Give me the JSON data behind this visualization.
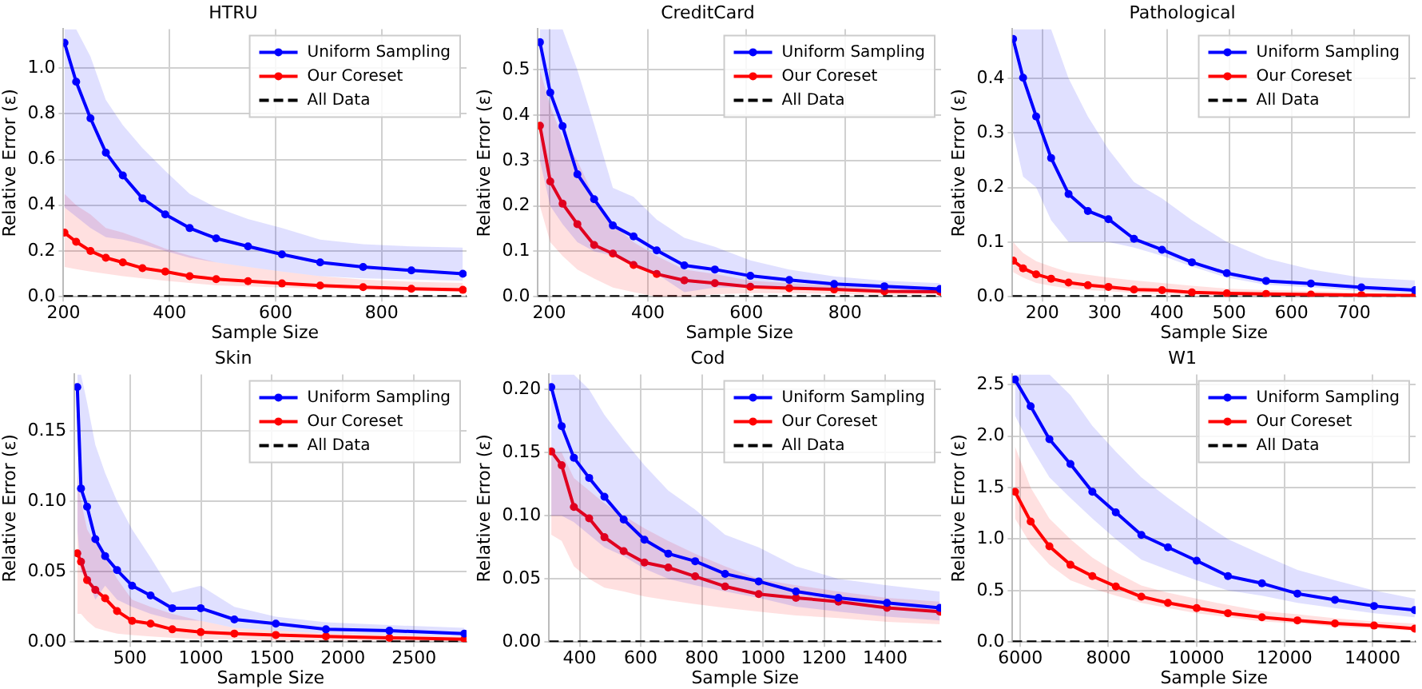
{
  "chart_data": [
    {
      "type": "line",
      "title": "HTRU",
      "xlabel": "Sample Size",
      "ylabel": "Relative Error (ε)",
      "grid": true,
      "legend": "top right",
      "marker": "circle",
      "xlim": [
        200,
        960
      ],
      "xticks": [
        200,
        400,
        600,
        800
      ],
      "ylim": [
        0,
        1.17
      ],
      "yticks": [
        {
          "value": 0,
          "label": "0.0"
        },
        {
          "value": 0.2,
          "label": "0.2"
        },
        {
          "value": 0.4,
          "label": "0.4"
        },
        {
          "value": 0.6,
          "label": "0.6"
        },
        {
          "value": 0.8,
          "label": "0.8"
        },
        {
          "value": 1,
          "label": "1.0"
        }
      ],
      "series": [
        {
          "name": "Uniform Sampling",
          "color": "#0000ff",
          "x": [
            202,
            224,
            251,
            280,
            312,
            349,
            392,
            438,
            488,
            548,
            612,
            684,
            765,
            856,
            953
          ],
          "values": [
            1.11,
            0.94,
            0.78,
            0.63,
            0.53,
            0.43,
            0.36,
            0.3,
            0.255,
            0.22,
            0.185,
            0.15,
            0.13,
            0.115,
            0.1
          ],
          "lower": [
            0.39,
            0.35,
            0.3,
            0.26,
            0.25,
            0.23,
            0.2,
            0.17,
            0.15,
            0.13,
            0.11,
            0.09,
            0.08,
            0.075,
            0.07
          ],
          "upper": [
            1.17,
            1.17,
            1.05,
            0.86,
            0.75,
            0.65,
            0.55,
            0.45,
            0.39,
            0.34,
            0.3,
            0.25,
            0.23,
            0.22,
            0.215
          ]
        },
        {
          "name": "Our Coreset",
          "color": "#ff0000",
          "x": [
            202,
            224,
            251,
            280,
            312,
            349,
            392,
            438,
            488,
            548,
            612,
            684,
            765,
            856,
            953
          ],
          "values": [
            0.28,
            0.24,
            0.2,
            0.17,
            0.15,
            0.125,
            0.11,
            0.09,
            0.077,
            0.068,
            0.058,
            0.049,
            0.042,
            0.035,
            0.03
          ],
          "lower": [
            0.13,
            0.12,
            0.11,
            0.1,
            0.09,
            0.08,
            0.07,
            0.06,
            0.05,
            0.045,
            0.04,
            0.035,
            0.03,
            0.025,
            0.02
          ],
          "upper": [
            0.45,
            0.4,
            0.36,
            0.3,
            0.28,
            0.25,
            0.21,
            0.18,
            0.15,
            0.13,
            0.11,
            0.09,
            0.075,
            0.065,
            0.06
          ]
        },
        {
          "name": "All Data",
          "color": "#000000",
          "marker": "none",
          "line_style": "dashed",
          "x": [
            200,
            960
          ],
          "values": [
            0,
            0
          ]
        }
      ]
    },
    {
      "type": "line",
      "title": "CreditCard",
      "xlabel": "Sample Size",
      "ylabel": "Relative Error (ε)",
      "grid": true,
      "legend": "top right",
      "marker": "circle",
      "xlim": [
        177,
        995
      ],
      "xticks": [
        200,
        400,
        600,
        800
      ],
      "ylim": [
        0,
        0.59
      ],
      "yticks": [
        {
          "value": 0,
          "label": "0.0"
        },
        {
          "value": 0.1,
          "label": "0.1"
        },
        {
          "value": 0.2,
          "label": "0.2"
        },
        {
          "value": 0.3,
          "label": "0.3"
        },
        {
          "value": 0.4,
          "label": "0.4"
        },
        {
          "value": 0.5,
          "label": "0.5"
        }
      ],
      "series": [
        {
          "name": "Uniform Sampling",
          "color": "#0000ff",
          "x": [
            181,
            202,
            227,
            257,
            291,
            329,
            371,
            418,
            474,
            536,
            608,
            687,
            778,
            880,
            993
          ],
          "values": [
            0.561,
            0.45,
            0.376,
            0.27,
            0.215,
            0.157,
            0.133,
            0.102,
            0.069,
            0.06,
            0.046,
            0.037,
            0.028,
            0.023,
            0.017
          ],
          "lower": [
            0.3,
            0.2,
            0.16,
            0.12,
            0.1,
            0.09,
            0.07,
            0.05,
            0.01,
            0.02,
            0.02,
            0.02,
            0.015,
            0.01,
            0.008
          ],
          "upper": [
            0.59,
            0.59,
            0.59,
            0.5,
            0.38,
            0.24,
            0.22,
            0.17,
            0.13,
            0.11,
            0.08,
            0.06,
            0.045,
            0.035,
            0.03
          ]
        },
        {
          "name": "Our Coreset",
          "color": "#ff0000",
          "x": [
            181,
            202,
            227,
            257,
            291,
            329,
            371,
            418,
            474,
            536,
            608,
            687,
            778,
            880,
            993
          ],
          "values": [
            0.377,
            0.254,
            0.205,
            0.16,
            0.114,
            0.095,
            0.07,
            0.05,
            0.036,
            0.03,
            0.022,
            0.019,
            0.016,
            0.012,
            0.011
          ],
          "lower": [
            0.2,
            0.12,
            0.09,
            0.06,
            0.04,
            0.02,
            0.01,
            0,
            0,
            0.005,
            0.008,
            0.008,
            0.006,
            0.004,
            0.004
          ],
          "upper": [
            0.5,
            0.42,
            0.35,
            0.3,
            0.22,
            0.16,
            0.12,
            0.09,
            0.06,
            0.05,
            0.035,
            0.03,
            0.025,
            0.02,
            0.018
          ]
        },
        {
          "name": "All Data",
          "color": "#000000",
          "marker": "none",
          "line_style": "dashed",
          "x": [
            177,
            995
          ],
          "values": [
            0,
            0
          ]
        }
      ]
    },
    {
      "type": "line",
      "title": "Pathological",
      "xlabel": "Sample Size",
      "ylabel": "Relative Error (ε)",
      "grid": true,
      "legend": "top right",
      "marker": "circle",
      "xlim": [
        152,
        799
      ],
      "xticks": [
        200,
        300,
        400,
        500,
        600,
        700
      ],
      "ylim": [
        0,
        0.49
      ],
      "yticks": [
        {
          "value": 0,
          "label": "0.0"
        },
        {
          "value": 0.1,
          "label": "0.1"
        },
        {
          "value": 0.2,
          "label": "0.2"
        },
        {
          "value": 0.3,
          "label": "0.3"
        },
        {
          "value": 0.4,
          "label": "0.4"
        }
      ],
      "series": [
        {
          "name": "Uniform Sampling",
          "color": "#0000ff",
          "x": [
            153,
            169,
            190,
            214,
            242,
            273,
            306,
            347,
            392,
            440,
            496,
            559,
            631,
            712,
            798
          ],
          "values": [
            0.472,
            0.401,
            0.33,
            0.254,
            0.188,
            0.157,
            0.142,
            0.106,
            0.086,
            0.063,
            0.043,
            0.029,
            0.024,
            0.017,
            0.012
          ],
          "lower": [
            0.3,
            0.22,
            0.2,
            0.14,
            0.1,
            0.1,
            0.1,
            0.09,
            0.075,
            0.055,
            0.035,
            0.022,
            0.017,
            0.01,
            0.006
          ],
          "upper": [
            0.49,
            0.49,
            0.49,
            0.49,
            0.4,
            0.33,
            0.27,
            0.21,
            0.18,
            0.14,
            0.1,
            0.07,
            0.05,
            0.035,
            0.03
          ]
        },
        {
          "name": "Our Coreset",
          "color": "#ff0000",
          "x": [
            153,
            169,
            190,
            214,
            242,
            273,
            306,
            347,
            392,
            440,
            496,
            559,
            631,
            712,
            798
          ],
          "values": [
            0.066,
            0.052,
            0.041,
            0.033,
            0.026,
            0.021,
            0.018,
            0.013,
            0.012,
            0.008,
            0.006,
            0.005,
            0.004,
            0.003,
            0.002
          ],
          "lower": [
            0.045,
            0.035,
            0.025,
            0.02,
            0.015,
            0.012,
            0.01,
            0.007,
            0.005,
            0.003,
            0.002,
            0.001,
            0.001,
            0.001,
            0
          ],
          "upper": [
            0.1,
            0.08,
            0.065,
            0.055,
            0.045,
            0.04,
            0.035,
            0.03,
            0.025,
            0.02,
            0.015,
            0.012,
            0.01,
            0.008,
            0.006
          ]
        },
        {
          "name": "All Data",
          "color": "#000000",
          "marker": "none",
          "line_style": "dashed",
          "x": [
            152,
            799
          ],
          "values": [
            0,
            0
          ]
        }
      ]
    },
    {
      "type": "line",
      "title": "Skin",
      "xlabel": "Sample Size",
      "ylabel": "Relative Error (ε)",
      "grid": true,
      "legend": "top right",
      "marker": "circle",
      "xlim": [
        110,
        2870
      ],
      "xticks": [
        500,
        1000,
        1500,
        2000,
        2500
      ],
      "ylim": [
        0,
        0.19
      ],
      "yticks": [
        {
          "value": 0,
          "label": "0.00"
        },
        {
          "value": 0.05,
          "label": "0.05"
        },
        {
          "value": 0.1,
          "label": "0.10"
        },
        {
          "value": 0.15,
          "label": "0.15"
        }
      ],
      "series": [
        {
          "name": "Uniform Sampling",
          "color": "#0000ff",
          "x": [
            129,
            155,
            198,
            256,
            325,
            409,
            515,
            645,
            798,
            998,
            1235,
            1527,
            1880,
            2327,
            2855
          ],
          "values": [
            0.181,
            0.109,
            0.096,
            0.073,
            0.061,
            0.051,
            0.04,
            0.033,
            0.024,
            0.024,
            0.016,
            0.013,
            0.009,
            0.008,
            0.006
          ],
          "lower": [
            0.08,
            0.05,
            0.045,
            0.03,
            0.04,
            0.03,
            0.025,
            0.02,
            0.016,
            0.015,
            0.01,
            0.008,
            0.006,
            0.005,
            0.004
          ],
          "upper": [
            0.19,
            0.19,
            0.17,
            0.14,
            0.12,
            0.1,
            0.08,
            0.06,
            0.035,
            0.04,
            0.025,
            0.018,
            0.014,
            0.012,
            0.01
          ]
        },
        {
          "name": "Our Coreset",
          "color": "#ff0000",
          "x": [
            129,
            155,
            198,
            256,
            325,
            409,
            515,
            645,
            798,
            998,
            1235,
            1527,
            1880,
            2327,
            2855
          ],
          "values": [
            0.063,
            0.057,
            0.044,
            0.037,
            0.031,
            0.022,
            0.015,
            0.013,
            0.009,
            0.007,
            0.006,
            0.005,
            0.004,
            0.003,
            0.002
          ],
          "lower": [
            0.02,
            0.02,
            0.015,
            0.01,
            0.008,
            0.006,
            0.005,
            0.004,
            0.003,
            0.002,
            0.002,
            0.001,
            0.001,
            0.001,
            0.0005
          ],
          "upper": [
            0.12,
            0.1,
            0.08,
            0.07,
            0.06,
            0.045,
            0.03,
            0.025,
            0.02,
            0.015,
            0.01,
            0.008,
            0.006,
            0.005,
            0.004
          ]
        },
        {
          "name": "All Data",
          "color": "#000000",
          "marker": "none",
          "line_style": "dashed",
          "x": [
            110,
            2870
          ],
          "values": [
            0,
            0
          ]
        }
      ]
    },
    {
      "type": "line",
      "title": "Cod",
      "xlabel": "Sample Size",
      "ylabel": "Relative Error (ε)",
      "grid": true,
      "legend": "top right",
      "marker": "circle",
      "xlim": [
        300,
        1583
      ],
      "xticks": [
        400,
        600,
        800,
        1000,
        1200,
        1400
      ],
      "ylim": [
        0,
        0.212
      ],
      "yticks": [
        {
          "value": 0,
          "label": "0.00"
        },
        {
          "value": 0.05,
          "label": "0.05"
        },
        {
          "value": 0.1,
          "label": "0.10"
        },
        {
          "value": 0.15,
          "label": "0.15"
        },
        {
          "value": 0.2,
          "label": "0.20"
        }
      ],
      "series": [
        {
          "name": "Uniform Sampling",
          "color": "#0000ff",
          "x": [
            307,
            341,
            381,
            431,
            481,
            544,
            612,
            690,
            778,
            876,
            986,
            1108,
            1247,
            1406,
            1579
          ],
          "values": [
            0.202,
            0.171,
            0.146,
            0.13,
            0.115,
            0.097,
            0.081,
            0.07,
            0.064,
            0.054,
            0.048,
            0.04,
            0.035,
            0.031,
            0.027
          ],
          "lower": [
            0.1,
            0.1,
            0.095,
            0.085,
            0.075,
            0.068,
            0.058,
            0.05,
            0.045,
            0.04,
            0.035,
            0.028,
            0.024,
            0.02,
            0.017
          ],
          "upper": [
            0.212,
            0.212,
            0.212,
            0.2,
            0.18,
            0.16,
            0.14,
            0.12,
            0.105,
            0.085,
            0.075,
            0.06,
            0.05,
            0.045,
            0.04
          ]
        },
        {
          "name": "Our Coreset",
          "color": "#ff0000",
          "x": [
            307,
            341,
            381,
            431,
            481,
            544,
            612,
            690,
            778,
            876,
            986,
            1108,
            1247,
            1406,
            1579
          ],
          "values": [
            0.151,
            0.14,
            0.107,
            0.098,
            0.083,
            0.072,
            0.063,
            0.059,
            0.052,
            0.044,
            0.038,
            0.035,
            0.032,
            0.027,
            0.024
          ],
          "lower": [
            0.085,
            0.08,
            0.06,
            0.05,
            0.043,
            0.04,
            0.036,
            0.033,
            0.03,
            0.027,
            0.024,
            0.021,
            0.019,
            0.016,
            0.014
          ],
          "upper": [
            0.15,
            0.15,
            0.13,
            0.12,
            0.11,
            0.1,
            0.09,
            0.08,
            0.07,
            0.06,
            0.05,
            0.045,
            0.04,
            0.035,
            0.032
          ]
        },
        {
          "name": "All Data",
          "color": "#000000",
          "marker": "none",
          "line_style": "dashed",
          "x": [
            300,
            1583
          ],
          "values": [
            0,
            0
          ]
        }
      ]
    },
    {
      "type": "line",
      "title": "W1",
      "xlabel": "Sample Size",
      "ylabel": "Relative Error (ε)",
      "grid": true,
      "legend": "top right",
      "marker": "circle",
      "xlim": [
        5822,
        14980
      ],
      "xticks": [
        6000,
        8000,
        10000,
        12000,
        14000
      ],
      "ylim": [
        0,
        2.6
      ],
      "yticks": [
        {
          "value": 0,
          "label": "0.0"
        },
        {
          "value": 0.5,
          "label": "0.5"
        },
        {
          "value": 1,
          "label": "1.0"
        },
        {
          "value": 1.5,
          "label": "1.5"
        },
        {
          "value": 2,
          "label": "2.0"
        },
        {
          "value": 2.5,
          "label": "2.5"
        }
      ],
      "series": [
        {
          "name": "Uniform Sampling",
          "color": "#0000ff",
          "x": [
            5879,
            6235,
            6661,
            7138,
            7636,
            8169,
            8750,
            9354,
            10006,
            10717,
            11489,
            12295,
            13148,
            14036,
            14960
          ],
          "values": [
            2.55,
            2.29,
            1.97,
            1.73,
            1.46,
            1.26,
            1.04,
            0.92,
            0.79,
            0.64,
            0.57,
            0.47,
            0.41,
            0.35,
            0.31
          ],
          "lower": [
            2.2,
            1.9,
            1.6,
            1.4,
            1.2,
            1.0,
            0.8,
            0.7,
            0.6,
            0.5,
            0.45,
            0.38,
            0.33,
            0.28,
            0.24
          ],
          "upper": [
            2.6,
            2.6,
            2.6,
            2.4,
            2.1,
            1.85,
            1.6,
            1.4,
            1.2,
            1.0,
            0.85,
            0.7,
            0.6,
            0.5,
            0.42
          ]
        },
        {
          "name": "Our Coreset",
          "color": "#ff0000",
          "x": [
            5879,
            6235,
            6661,
            7138,
            7636,
            8169,
            8750,
            9354,
            10006,
            10717,
            11489,
            12295,
            13148,
            14036,
            14960
          ],
          "values": [
            1.46,
            1.17,
            0.93,
            0.75,
            0.64,
            0.54,
            0.44,
            0.38,
            0.33,
            0.28,
            0.24,
            0.21,
            0.18,
            0.16,
            0.13
          ],
          "lower": [
            1.2,
            0.95,
            0.75,
            0.6,
            0.52,
            0.45,
            0.38,
            0.33,
            0.28,
            0.24,
            0.2,
            0.18,
            0.15,
            0.13,
            0.11
          ],
          "upper": [
            1.9,
            1.5,
            1.2,
            1.0,
            0.82,
            0.68,
            0.55,
            0.48,
            0.42,
            0.36,
            0.3,
            0.27,
            0.23,
            0.2,
            0.18
          ]
        },
        {
          "name": "All Data",
          "color": "#000000",
          "marker": "none",
          "line_style": "dashed",
          "x": [
            5822,
            14980
          ],
          "values": [
            0,
            0
          ]
        }
      ]
    }
  ]
}
